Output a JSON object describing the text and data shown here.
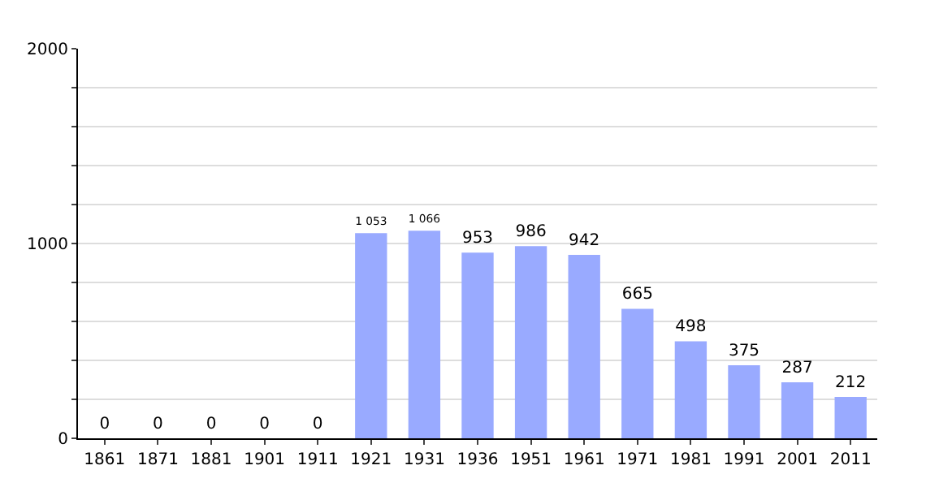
{
  "chart_data": {
    "type": "bar",
    "categories": [
      "1861",
      "1871",
      "1881",
      "1901",
      "1911",
      "1921",
      "1931",
      "1936",
      "1951",
      "1961",
      "1971",
      "1981",
      "1991",
      "2001",
      "2011"
    ],
    "values": [
      0,
      0,
      0,
      0,
      0,
      1053,
      1066,
      953,
      986,
      942,
      665,
      498,
      375,
      287,
      212
    ],
    "value_labels": [
      "0",
      "0",
      "0",
      "0",
      "0",
      "1 053",
      "1 066",
      "953",
      "986",
      "942",
      "665",
      "498",
      "375",
      "287",
      "212"
    ],
    "color": "#99aaff",
    "ylim": [
      0,
      2000
    ],
    "yticks": [
      0,
      {
        "value": 200,
        "label": null
      },
      {
        "value": 400,
        "label": null
      },
      {
        "value": 600,
        "label": null
      },
      {
        "value": 800,
        "label": null
      },
      1000,
      {
        "value": 1200,
        "label": null
      },
      {
        "value": 1400,
        "label": null
      },
      {
        "value": 1600,
        "label": null
      },
      {
        "value": 1800,
        "label": null
      },
      2000
    ],
    "grid": "y"
  }
}
